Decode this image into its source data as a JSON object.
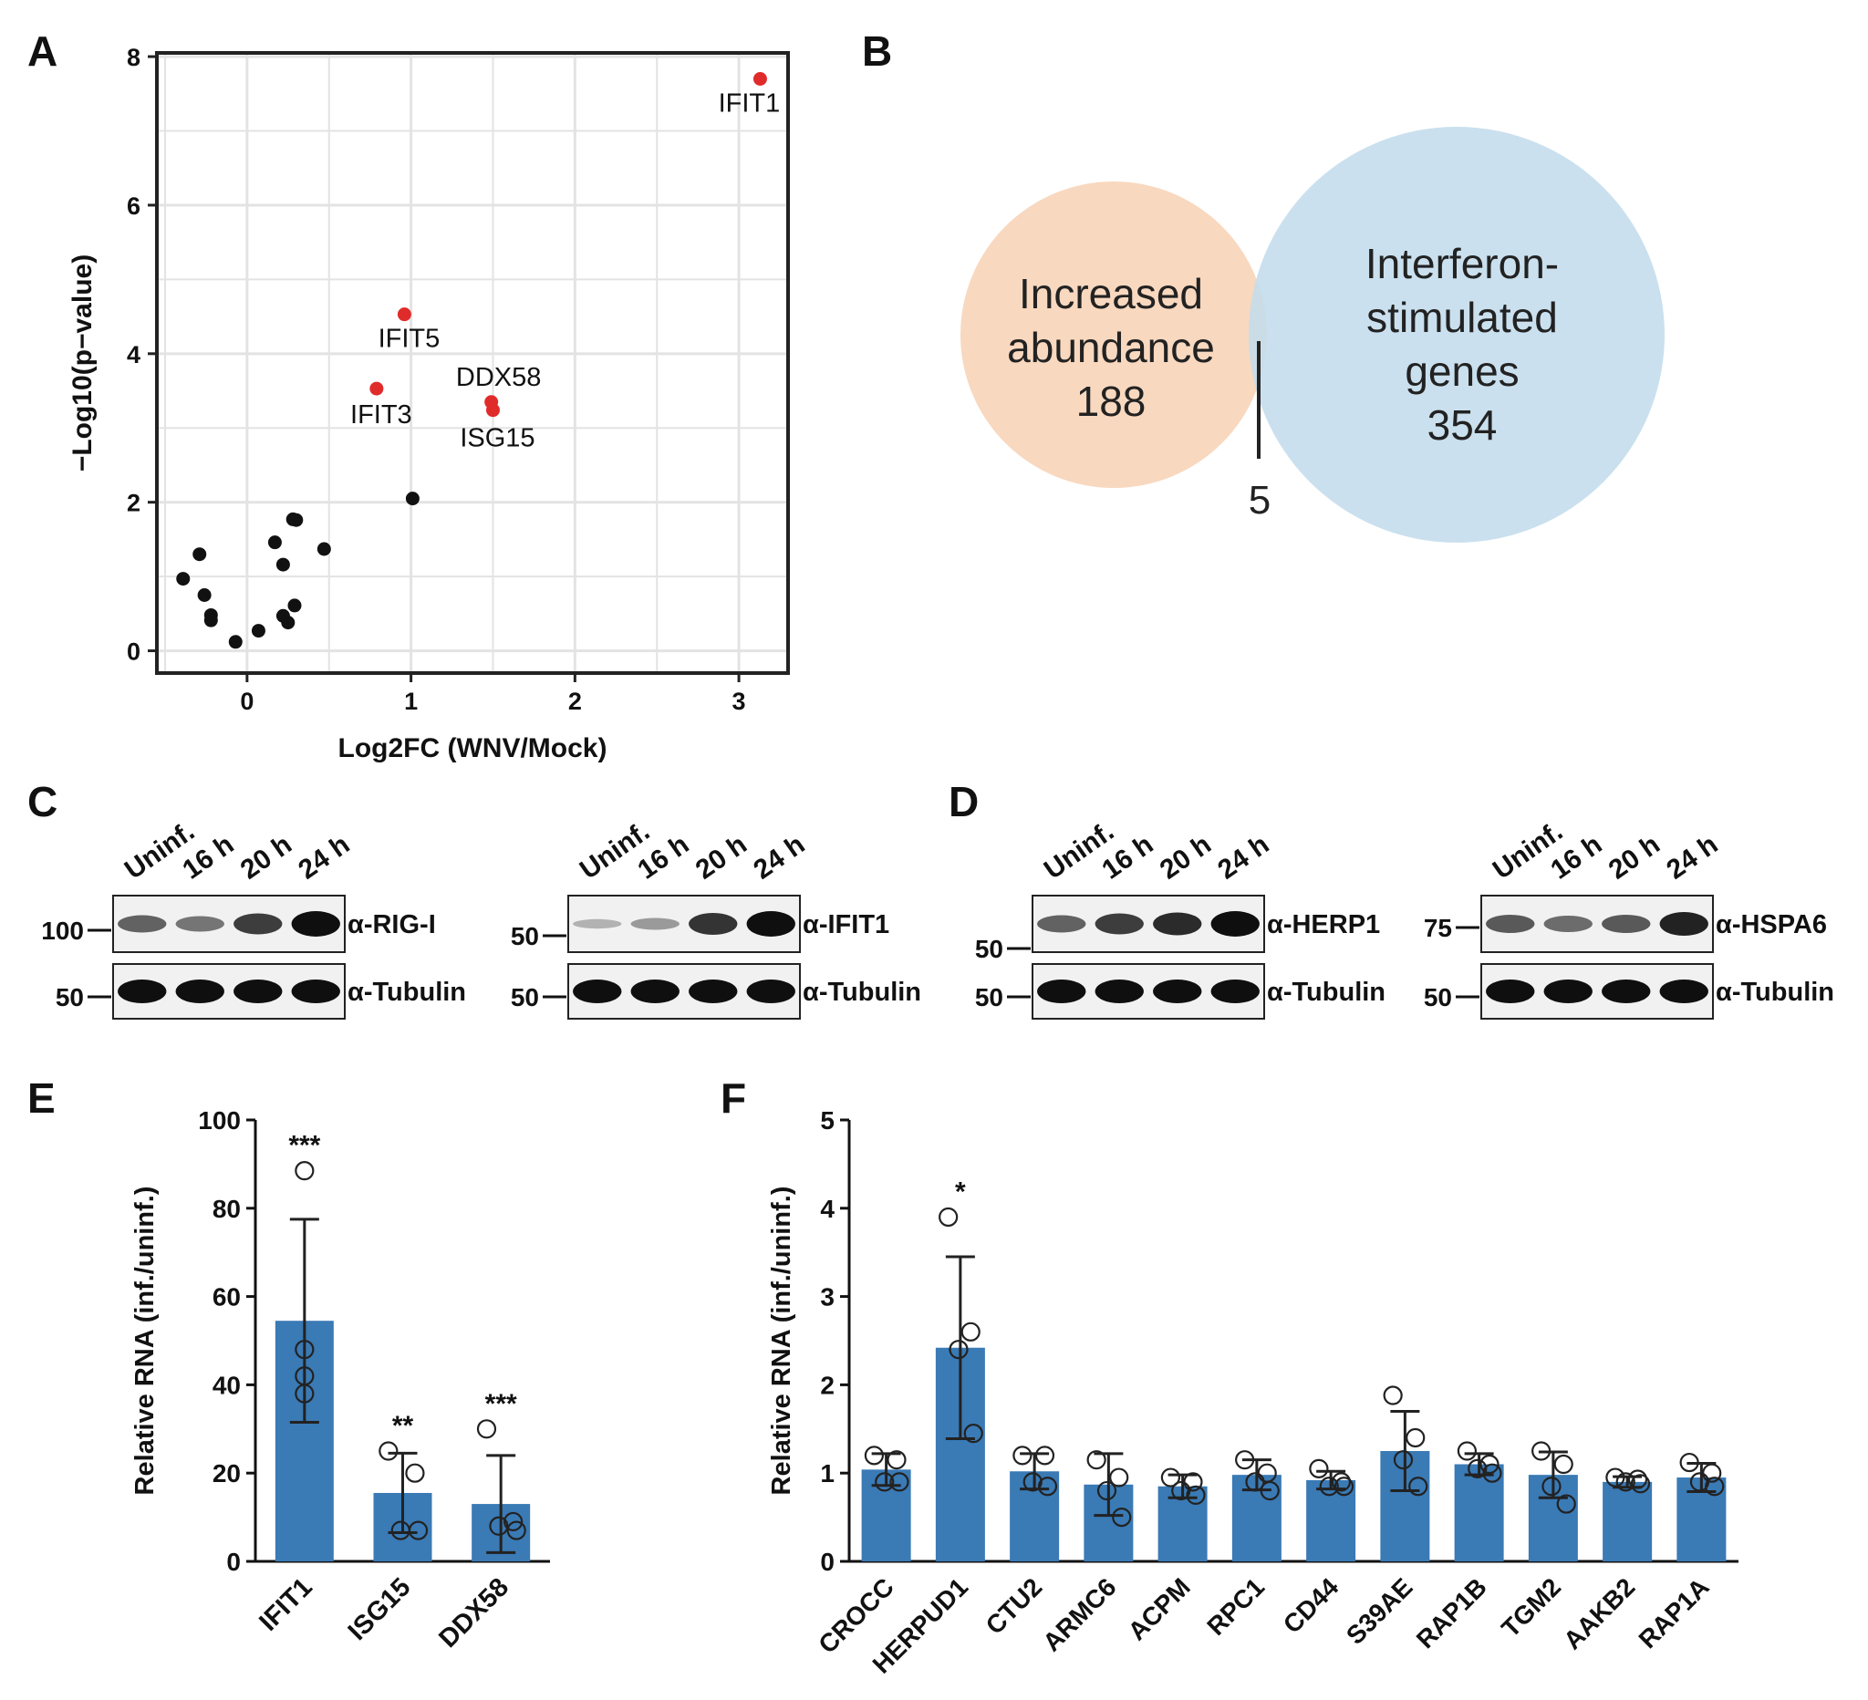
{
  "colors": {
    "red_point": "#e02b2b",
    "black_point": "#111111",
    "venn_left": "#f8d8bf",
    "venn_right": "#c3dcec",
    "bar": "#3a7ab5",
    "grid": "#e3e3e3"
  },
  "panels": {
    "A": "A",
    "B": "B",
    "C": "C",
    "D": "D",
    "E": "E",
    "F": "F"
  },
  "chart_data": [
    {
      "id": "A",
      "type": "scatter",
      "title": "",
      "xlabel": "Log2FC (WNV/Mock)",
      "ylabel": "−Log10(p−value)",
      "xlim": [
        -0.55,
        3.3
      ],
      "ylim": [
        -0.3,
        8.05
      ],
      "xticks": [
        0,
        1,
        2,
        3
      ],
      "yticks": [
        0,
        2,
        4,
        6,
        8
      ],
      "grid": true,
      "labeled_points": [
        {
          "label": "IFIT1",
          "x": 3.13,
          "y": 7.7
        },
        {
          "label": "IFIT5",
          "x": 0.96,
          "y": 4.53
        },
        {
          "label": "IFIT3",
          "x": 0.79,
          "y": 3.53
        },
        {
          "label": "DDX58",
          "x": 1.49,
          "y": 3.35
        },
        {
          "label": "ISG15",
          "x": 1.5,
          "y": 3.24
        }
      ],
      "points": [
        [
          1.01,
          2.05
        ],
        [
          0.47,
          1.37
        ],
        [
          0.28,
          1.77
        ],
        [
          0.3,
          1.76
        ],
        [
          0.17,
          1.46
        ],
        [
          0.22,
          1.16
        ],
        [
          0.29,
          0.61
        ],
        [
          0.22,
          0.47
        ],
        [
          0.25,
          0.38
        ],
        [
          0.07,
          0.27
        ],
        [
          -0.07,
          0.12
        ],
        [
          -0.29,
          1.3
        ],
        [
          -0.39,
          0.97
        ],
        [
          -0.26,
          0.75
        ],
        [
          -0.22,
          0.48
        ],
        [
          -0.22,
          0.41
        ]
      ]
    },
    {
      "id": "B",
      "type": "venn",
      "sets": [
        {
          "lines": [
            "Increased",
            "abundance",
            "188"
          ]
        },
        {
          "lines": [
            "Interferon-",
            "stimulated",
            "genes",
            "354"
          ]
        }
      ],
      "overlap": "5"
    },
    {
      "id": "C",
      "type": "blot",
      "lanes": [
        "Uninf.",
        "16 h",
        "20 h",
        "24 h"
      ],
      "blots": [
        {
          "markers": [
            "100",
            "50"
          ],
          "antibodies": [
            "α-RIG-I",
            "α-Tubulin"
          ],
          "top_intensity": [
            0.55,
            0.45,
            0.75,
            1.0
          ]
        },
        {
          "markers": [
            "50",
            "50"
          ],
          "antibodies": [
            "α-IFIT1",
            "α-Tubulin"
          ],
          "top_intensity": [
            0.12,
            0.25,
            0.8,
            1.0
          ]
        }
      ]
    },
    {
      "id": "D",
      "type": "blot",
      "lanes": [
        "Uninf.",
        "16 h",
        "20 h",
        "24 h"
      ],
      "blots": [
        {
          "markers": [
            "50",
            "50"
          ],
          "antibodies": [
            "α-HERP1",
            "α-Tubulin"
          ],
          "top_intensity": [
            0.55,
            0.75,
            0.85,
            1.0
          ]
        },
        {
          "markers": [
            "75",
            "50"
          ],
          "antibodies": [
            "α-HSPA6",
            "α-Tubulin"
          ],
          "top_intensity": [
            0.6,
            0.5,
            0.6,
            0.9
          ]
        }
      ]
    },
    {
      "id": "E",
      "type": "bar",
      "ylabel": "Relative RNA (inf./uninf.)",
      "ylim": [
        0,
        100
      ],
      "yticks": [
        0,
        20,
        40,
        60,
        80,
        100
      ],
      "categories": [
        "IFIT1",
        "ISG15",
        "DDX58"
      ],
      "values": [
        54.5,
        15.5,
        13
      ],
      "errors": [
        23,
        9,
        11
      ],
      "significance": [
        "***",
        "**",
        "***"
      ],
      "replicates": [
        [
          88.5,
          48,
          42,
          38
        ],
        [
          25,
          20,
          7,
          7
        ],
        [
          30,
          9,
          8,
          7
        ]
      ]
    },
    {
      "id": "F",
      "type": "bar",
      "ylabel": "Relative RNA (inf./uninf.)",
      "ylim": [
        0,
        5
      ],
      "yticks": [
        0,
        1,
        2,
        3,
        4,
        5
      ],
      "categories": [
        "CROCC",
        "HERPUD1",
        "CTU2",
        "ARMC6",
        "ACPM",
        "RPC1",
        "CD44",
        "S39AE",
        "RAP1B",
        "TGM2",
        "AAKB2",
        "RAP1A"
      ],
      "values": [
        1.04,
        2.42,
        1.02,
        0.87,
        0.85,
        0.98,
        0.92,
        1.25,
        1.1,
        0.98,
        0.9,
        0.95
      ],
      "errors": [
        0.18,
        1.03,
        0.2,
        0.35,
        0.13,
        0.17,
        0.1,
        0.45,
        0.12,
        0.26,
        0.06,
        0.16
      ],
      "significance": [
        "",
        "*",
        "",
        "",
        "",
        "",
        "",
        "",
        "",
        "",
        "",
        ""
      ],
      "replicates": [
        [
          1.2,
          1.15,
          0.9,
          0.9
        ],
        [
          3.9,
          2.6,
          2.4,
          1.45
        ],
        [
          1.2,
          1.2,
          0.9,
          0.85
        ],
        [
          1.15,
          0.95,
          0.8,
          0.5
        ],
        [
          0.95,
          0.9,
          0.8,
          0.75
        ],
        [
          1.15,
          1.0,
          0.9,
          0.8
        ],
        [
          1.05,
          0.9,
          0.85,
          0.85
        ],
        [
          1.88,
          1.4,
          1.15,
          0.85
        ],
        [
          1.25,
          1.1,
          1.05,
          1.0
        ],
        [
          1.25,
          1.1,
          0.85,
          0.65
        ],
        [
          0.95,
          0.93,
          0.9,
          0.88
        ],
        [
          1.12,
          1.0,
          0.9,
          0.85
        ]
      ]
    }
  ]
}
